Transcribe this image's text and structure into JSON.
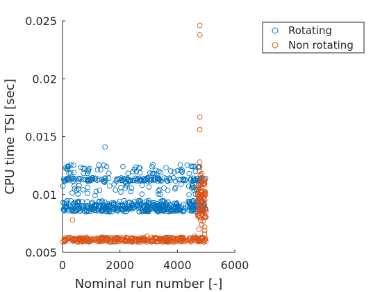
{
  "chart_data": {
    "type": "scatter",
    "title": "",
    "xlabel": "Nominal run number [-]",
    "ylabel": "CPU time TSI [sec]",
    "xlim": [
      0,
      6000
    ],
    "ylim": [
      0.005,
      0.025
    ],
    "x_ticks": [
      0,
      2000,
      4000,
      6000
    ],
    "x_tick_labels": [
      "0",
      "2000",
      "4000",
      "6000"
    ],
    "y_ticks": [
      0.005,
      0.01,
      0.015,
      0.02,
      0.025
    ],
    "y_tick_labels": [
      "0.005",
      "0.01",
      "0.015",
      "0.02",
      "0.025"
    ],
    "grid": false,
    "legend_position": "outside-top-right",
    "series": [
      {
        "name": "Rotating",
        "color": "#0072BD",
        "marker": "open-circle",
        "bands": [
          {
            "x_range": [
              0,
              5000
            ],
            "y_center": 0.0088,
            "y_spread": 0.0003,
            "count": 300
          },
          {
            "x_range": [
              0,
              5000
            ],
            "y_center": 0.0093,
            "y_spread": 0.0002,
            "count": 80
          },
          {
            "x_range": [
              0,
              5000
            ],
            "y_center": 0.0113,
            "y_spread": 0.00015,
            "count": 120
          },
          {
            "x_range": [
              0,
              5000
            ],
            "y_center": 0.0107,
            "y_spread": 0.0008,
            "count": 70
          },
          {
            "x_range": [
              0,
              5000
            ],
            "y_center": 0.0122,
            "y_spread": 0.0004,
            "count": 60
          }
        ],
        "points": [
          [
            1480,
            0.0141
          ]
        ]
      },
      {
        "name": "Non rotating",
        "color": "#D95319",
        "marker": "open-circle",
        "bands": [
          {
            "x_range": [
              0,
              5000
            ],
            "y_center": 0.0061,
            "y_spread": 0.0002,
            "count": 320
          },
          {
            "x_range": [
              4700,
              5000
            ],
            "y_center": 0.0095,
            "y_spread": 0.0018,
            "count": 60
          }
        ],
        "points": [
          [
            4780,
            0.0246
          ],
          [
            4780,
            0.0238
          ],
          [
            4780,
            0.0167
          ],
          [
            4780,
            0.0156
          ],
          [
            4780,
            0.0128
          ],
          [
            4780,
            0.0124
          ],
          [
            4780,
            0.012
          ],
          [
            4850,
            0.0118
          ],
          [
            4900,
            0.0082
          ],
          [
            4900,
            0.0077
          ],
          [
            4950,
            0.0072
          ],
          [
            4950,
            0.0069
          ],
          [
            4950,
            0.0066
          ],
          [
            4800,
            0.0078
          ],
          [
            4850,
            0.0074
          ],
          [
            4750,
            0.007
          ],
          [
            4850,
            0.0114
          ],
          [
            4900,
            0.0112
          ],
          [
            4950,
            0.011
          ],
          [
            4850,
            0.0106
          ],
          [
            4900,
            0.01
          ],
          [
            4800,
            0.0098
          ],
          [
            4850,
            0.0092
          ],
          [
            4800,
            0.0089
          ],
          [
            4900,
            0.0086
          ],
          [
            4850,
            0.0083
          ],
          [
            4800,
            0.0117
          ],
          [
            4950,
            0.0113
          ],
          [
            4900,
            0.0109
          ],
          [
            4850,
            0.0103
          ],
          [
            4800,
            0.01
          ],
          [
            4950,
            0.0095
          ],
          [
            4900,
            0.0091
          ],
          [
            4850,
            0.0088
          ],
          [
            4800,
            0.0085
          ],
          [
            4950,
            0.008
          ],
          [
            350,
            0.0078
          ],
          [
            4600,
            0.0064
          ],
          [
            2950,
            0.0064
          ]
        ]
      }
    ]
  }
}
